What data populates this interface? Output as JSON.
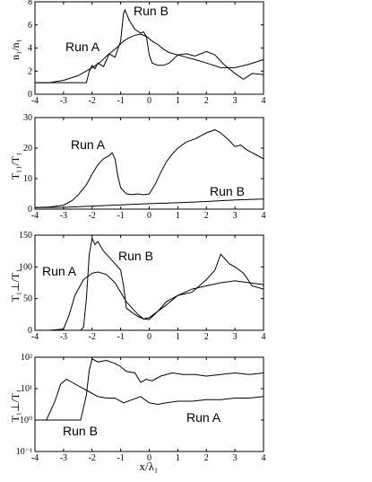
{
  "chart_data": [
    {
      "type": "line",
      "ylabel": "n₁/n₁",
      "xlim": [
        -4,
        4
      ],
      "ylim": [
        0,
        8
      ],
      "xticks": [
        "-4",
        "-3",
        "-2",
        "-1",
        "0",
        "1",
        "2",
        "3",
        "4"
      ],
      "yticks": [
        {
          "v": 0,
          "t": "0"
        },
        {
          "v": 2,
          "t": "2"
        },
        {
          "v": 4,
          "t": "4"
        },
        {
          "v": 6,
          "t": "6"
        },
        {
          "v": 8,
          "t": "8"
        }
      ],
      "series": [
        {
          "name": "Run A",
          "x": [
            -4,
            -3.5,
            -3,
            -2.5,
            -2,
            -1.7,
            -1.5,
            -1.3,
            -1.1,
            -0.9,
            -0.7,
            -0.5,
            -0.3,
            -0.1,
            0.1,
            0.3,
            0.5,
            0.7,
            1,
            1.3,
            1.6,
            2,
            2.5,
            3,
            3.5,
            4
          ],
          "y": [
            1,
            1,
            1.2,
            1.6,
            2.3,
            2.8,
            3.3,
            3.7,
            4.1,
            4.6,
            4.9,
            5.1,
            5.2,
            5.0,
            4.6,
            4.3,
            3.9,
            3.6,
            3.4,
            3.2,
            3.0,
            2.7,
            2.3,
            2.3,
            2.6,
            3.0
          ]
        },
        {
          "name": "Run B",
          "x": [
            -4,
            -2.2,
            -2.1,
            -2.0,
            -1.9,
            -1.8,
            -1.6,
            -1.4,
            -1.2,
            -1.0,
            -0.9,
            -0.85,
            -0.7,
            -0.5,
            -0.3,
            -0.2,
            -0.1,
            0,
            0.1,
            0.3,
            0.5,
            0.7,
            1,
            1.3,
            1.6,
            2,
            2.3,
            2.6,
            3,
            3.3,
            3.6,
            4
          ],
          "y": [
            1,
            1,
            2.0,
            2.5,
            2.2,
            2.7,
            2.4,
            3.5,
            3.2,
            4.6,
            7.0,
            7.3,
            6.4,
            5.6,
            5.3,
            5.4,
            5.0,
            3.4,
            2.7,
            2.5,
            2.5,
            2.7,
            3.4,
            3.5,
            3.3,
            3.7,
            3.4,
            2.6,
            1.8,
            1.3,
            1.8,
            1.7
          ]
        }
      ],
      "annotations": [
        "Run A",
        "Run B"
      ]
    },
    {
      "type": "line",
      "ylabel": "T₁₁/T₁",
      "xlim": [
        -4,
        4
      ],
      "ylim": [
        0,
        30
      ],
      "xticks": [
        "-4",
        "-3",
        "-2",
        "-1",
        "0",
        "1",
        "2",
        "3",
        "4"
      ],
      "yticks": [
        {
          "v": 0,
          "t": "0"
        },
        {
          "v": 10,
          "t": "10"
        },
        {
          "v": 20,
          "t": "20"
        },
        {
          "v": 30,
          "t": "30"
        }
      ],
      "series": [
        {
          "name": "Run A",
          "x": [
            -4,
            -3.5,
            -3,
            -2.7,
            -2.5,
            -2.2,
            -2,
            -1.8,
            -1.6,
            -1.4,
            -1.3,
            -1.2,
            -1.1,
            -1,
            -0.8,
            -0.6,
            -0.4,
            -0.2,
            0,
            0.2,
            0.4,
            0.6,
            0.8,
            1,
            1.3,
            1.6,
            2,
            2.3,
            2.5,
            2.8,
            3,
            3.2,
            3.4,
            3.6,
            3.8,
            4
          ],
          "y": [
            0.5,
            0.7,
            1.3,
            2.8,
            4.5,
            8.0,
            11.5,
            14.5,
            16.5,
            17.5,
            18.5,
            16.5,
            11.0,
            7.0,
            5.0,
            4.8,
            5.0,
            4.7,
            5.0,
            8.0,
            12.0,
            15.5,
            18.0,
            20.0,
            22.0,
            23.0,
            25.0,
            26.0,
            25.0,
            22.5,
            20.5,
            21.0,
            19.5,
            18.5,
            17.5,
            16.5
          ]
        },
        {
          "name": "Run B",
          "x": [
            -4,
            -3,
            -2,
            -1,
            0,
            1,
            2,
            3,
            4
          ],
          "y": [
            0.5,
            0.6,
            1.0,
            1.4,
            1.8,
            2.1,
            2.5,
            3.0,
            3.3
          ]
        }
      ],
      "annotations": [
        "Run A",
        "Run B"
      ]
    },
    {
      "type": "line",
      "ylabel": "T₁⊥/T₁",
      "xlim": [
        -4,
        4
      ],
      "ylim": [
        0,
        150
      ],
      "xticks": [
        "-4",
        "-3",
        "-2",
        "-1",
        "0",
        "1",
        "2",
        "3",
        "4"
      ],
      "yticks": [
        {
          "v": 0,
          "t": "0"
        },
        {
          "v": 50,
          "t": "50"
        },
        {
          "v": 100,
          "t": "100"
        },
        {
          "v": 150,
          "t": "150"
        }
      ],
      "series": [
        {
          "name": "Run A",
          "x": [
            -4,
            -3.5,
            -3,
            -2.8,
            -2.6,
            -2.3,
            -2,
            -1.8,
            -1.5,
            -1.2,
            -1,
            -0.8,
            -0.6,
            -0.4,
            -0.2,
            0,
            0.3,
            0.6,
            1,
            1.5,
            2,
            2.5,
            3,
            3.5,
            4
          ],
          "y": [
            0,
            0,
            2,
            25,
            55,
            80,
            90,
            92,
            88,
            75,
            60,
            45,
            35,
            25,
            18,
            17,
            30,
            45,
            55,
            65,
            70,
            75,
            78,
            75,
            72
          ]
        },
        {
          "name": "Run B",
          "x": [
            -4,
            -2.4,
            -2.3,
            -2.2,
            -2.1,
            -2.0,
            -1.9,
            -1.8,
            -1.6,
            -1.4,
            -1.2,
            -1.0,
            -0.9,
            -0.8,
            -0.6,
            -0.4,
            -0.2,
            0,
            0.3,
            0.6,
            1,
            1.5,
            2,
            2.3,
            2.5,
            2.8,
            3,
            3.3,
            3.6,
            4
          ],
          "y": [
            0,
            0,
            5,
            50,
            120,
            145,
            135,
            140,
            125,
            115,
            105,
            95,
            70,
            35,
            28,
            22,
            18,
            20,
            30,
            40,
            55,
            60,
            80,
            95,
            120,
            105,
            100,
            90,
            70,
            65
          ]
        }
      ],
      "annotations": [
        "Run A",
        "Run B"
      ]
    },
    {
      "type": "line",
      "ylabel": "T₁⊥/T₁",
      "xlim": [
        -4,
        4
      ],
      "ylim": [
        -1,
        2
      ],
      "ylog": true,
      "xticks": [
        "-4",
        "-3",
        "-2",
        "-1",
        "0",
        "1",
        "2",
        "3",
        "4"
      ],
      "yticks": [
        {
          "v": -1,
          "t": "10⁻¹"
        },
        {
          "v": 0,
          "t": "10⁰"
        },
        {
          "v": 1,
          "t": "10¹"
        },
        {
          "v": 2,
          "t": "10²"
        }
      ],
      "series": [
        {
          "name": "Run A",
          "x": [
            -4,
            -3.6,
            -3.3,
            -3.1,
            -2.9,
            -2.7,
            -2.4,
            -2.1,
            -1.8,
            -1.5,
            -1.2,
            -0.9,
            -0.6,
            -0.3,
            0,
            0.3,
            0.6,
            1,
            1.5,
            2,
            2.5,
            3,
            3.5,
            4
          ],
          "y": [
            0.0,
            0.0,
            0.6,
            1.15,
            1.3,
            1.2,
            1.05,
            0.9,
            0.75,
            0.7,
            0.7,
            0.55,
            0.65,
            0.75,
            0.55,
            0.5,
            0.55,
            0.6,
            0.6,
            0.65,
            0.65,
            0.7,
            0.7,
            0.75
          ]
        },
        {
          "name": "Run B",
          "x": [
            -4,
            -3,
            -2.4,
            -2.2,
            -2.1,
            -2.0,
            -1.8,
            -1.5,
            -1.2,
            -1.0,
            -0.8,
            -0.5,
            -0.3,
            -0.1,
            0.1,
            0.4,
            0.8,
            1.2,
            1.6,
            2,
            2.5,
            3,
            3.5,
            4
          ],
          "y": [
            0.0,
            0.0,
            0.0,
            0.8,
            1.6,
            1.95,
            1.85,
            1.9,
            1.8,
            1.7,
            1.55,
            1.5,
            1.2,
            1.3,
            1.25,
            1.4,
            1.5,
            1.45,
            1.45,
            1.4,
            1.45,
            1.5,
            1.45,
            1.5
          ]
        }
      ],
      "annotations": [
        "Run A",
        "Run B"
      ],
      "xlabel": "x/λ₁"
    }
  ],
  "labels": {
    "p1_run_a": "Run A",
    "p1_run_b": "Run B",
    "p2_run_a": "Run A",
    "p2_run_b": "Run B",
    "p3_run_a": "Run A",
    "p3_run_b": "Run B",
    "p4_run_a": "Run A",
    "p4_run_b": "Run B"
  }
}
